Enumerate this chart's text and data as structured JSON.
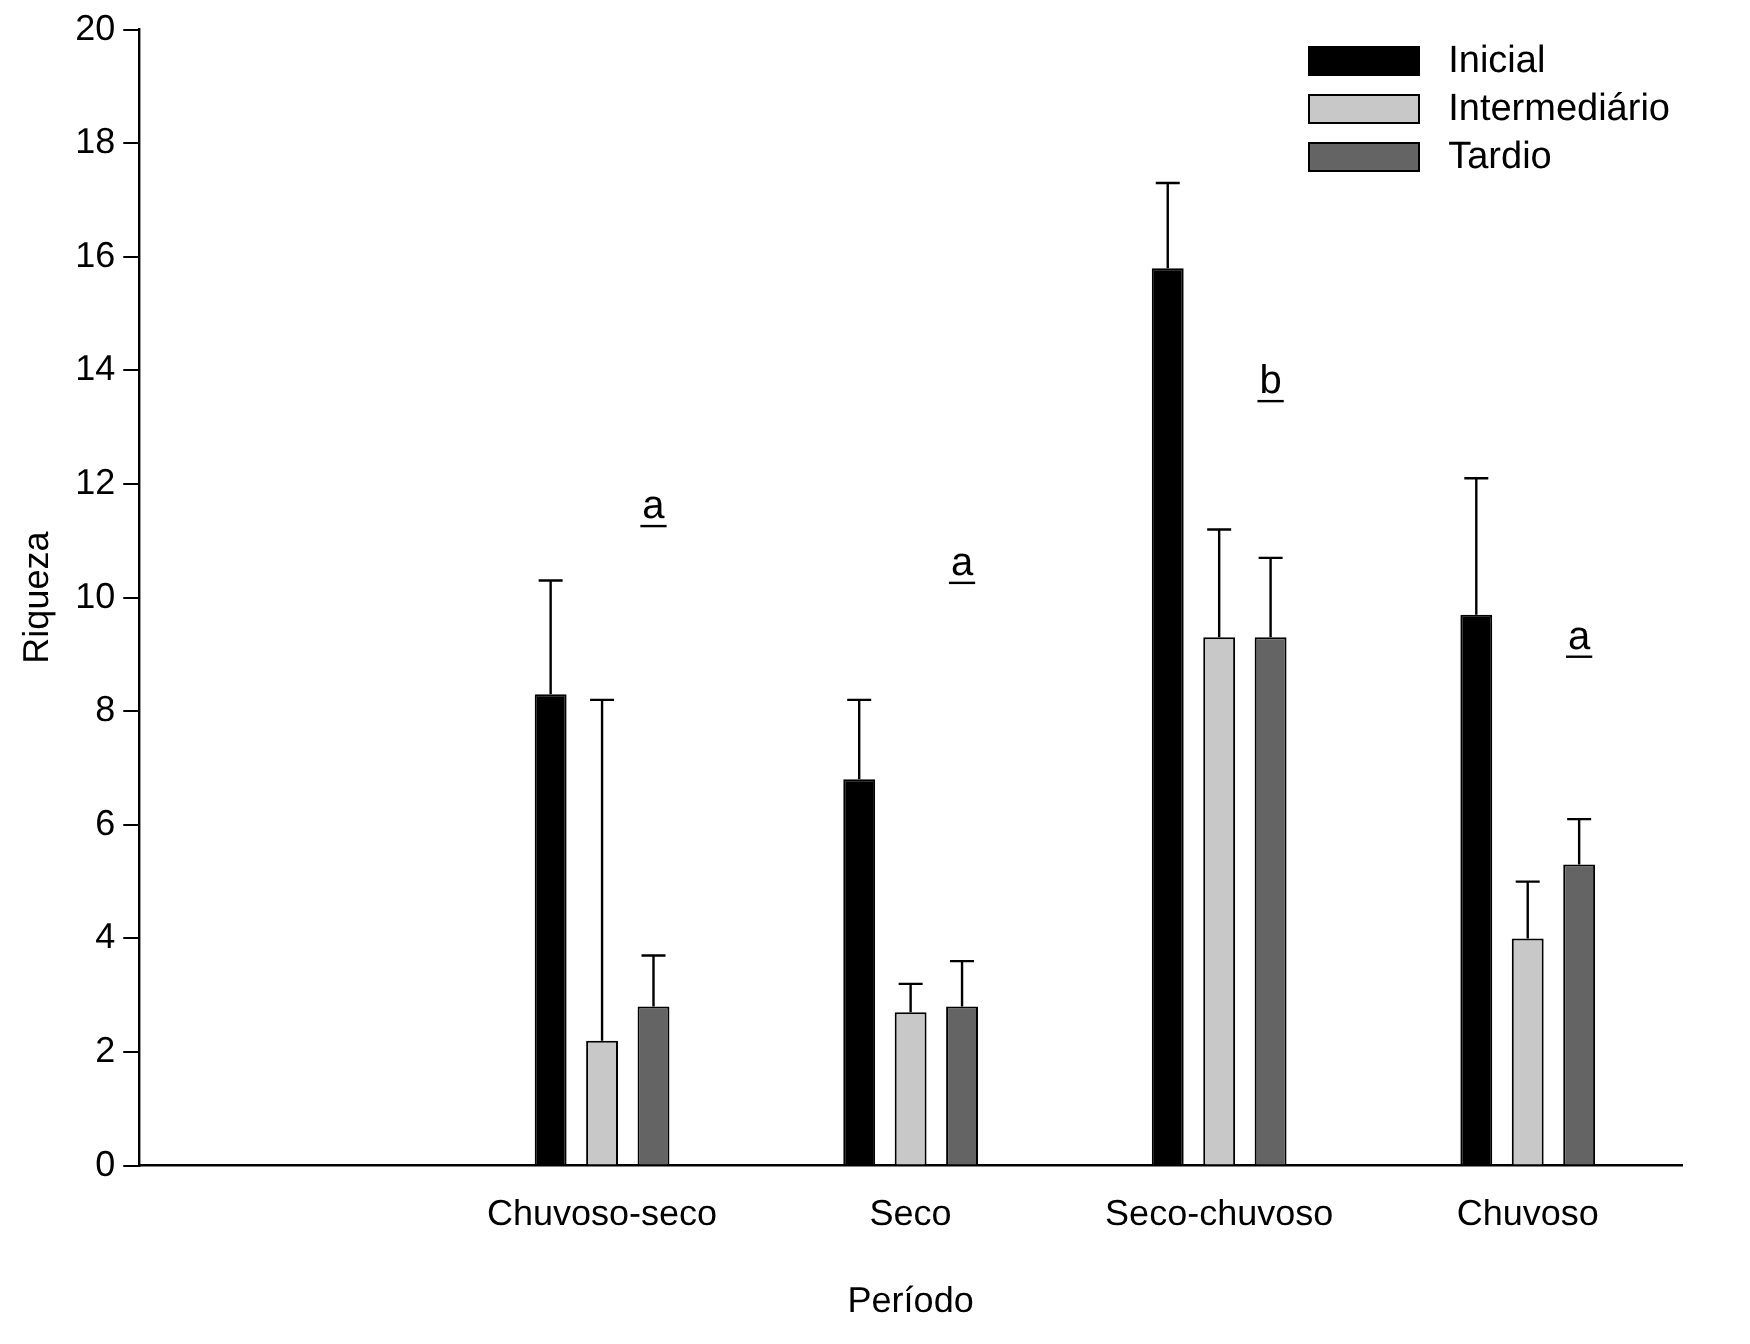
{
  "chart_data": {
    "type": "bar",
    "xlabel": "Período",
    "ylabel": "Riqueza",
    "categories": [
      null,
      "Chuvoso-seco",
      "Seco",
      "Seco-chuvoso",
      "Chuvoso"
    ],
    "series": [
      {
        "name": "Inicial",
        "color": "#000000",
        "values": [
          null,
          8.3,
          6.8,
          15.8,
          9.7
        ],
        "errors": [
          null,
          [
            8.3,
            10.3
          ],
          [
            6.8,
            8.2
          ],
          [
            15.8,
            17.3
          ],
          [
            9.7,
            12.1
          ]
        ]
      },
      {
        "name": "Intermediário",
        "color": "#c8c8c8",
        "values": [
          null,
          2.2,
          2.7,
          9.3,
          4.0
        ],
        "errors": [
          null,
          [
            2.2,
            8.2
          ],
          [
            2.7,
            3.2
          ],
          [
            9.3,
            11.2
          ],
          [
            4.0,
            5.0
          ]
        ]
      },
      {
        "name": "Tardio",
        "color": "#646464",
        "values": [
          null,
          2.8,
          2.8,
          9.3,
          5.3
        ],
        "errors": [
          null,
          [
            2.8,
            3.7
          ],
          [
            2.8,
            3.6
          ],
          [
            9.3,
            10.7
          ],
          [
            5.3,
            6.1
          ]
        ]
      }
    ],
    "annotations": [
      "a",
      "a",
      "b",
      "a"
    ],
    "ylim": [
      0,
      20
    ],
    "yticks": [
      0,
      2,
      4,
      6,
      8,
      10,
      12,
      14,
      16,
      18,
      20
    ],
    "grid": false,
    "legend": "top right"
  }
}
